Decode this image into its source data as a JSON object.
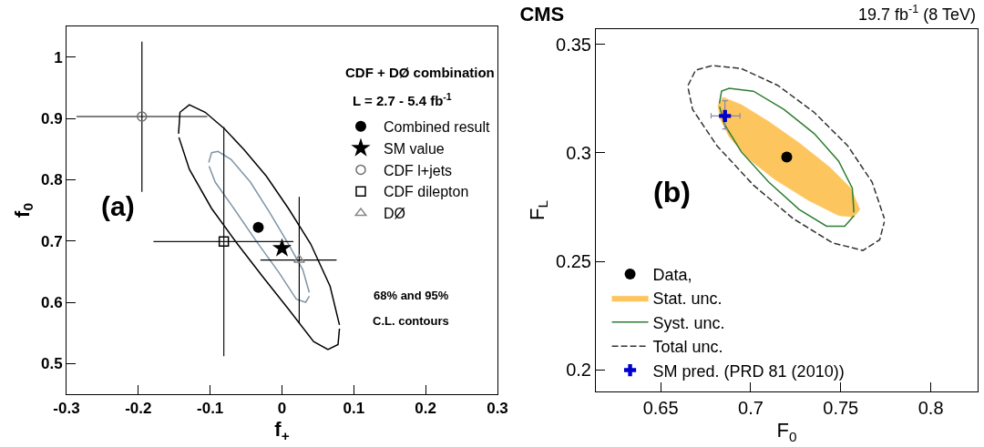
{
  "chart_data": [
    {
      "type": "scatter",
      "xlabel": "f$_{+}$",
      "ylabel": "f$_{0}$",
      "xlim": [
        -0.3,
        0.3
      ],
      "xticks": [
        -0.3,
        -0.2,
        -0.1,
        0,
        0.1,
        0.2,
        0.3
      ],
      "ylim": [
        0.45,
        1.05
      ],
      "yticks": [
        0.5,
        0.6,
        0.7,
        0.8,
        0.9,
        1
      ],
      "grid": false,
      "legend": "top right",
      "annotations": [
        "CDF + DØ combination",
        "L = 2.7 - 5.4 fb$^{-1}$",
        "68% and 95%",
        "C.L. contours",
        "(a)"
      ],
      "series": [
        {
          "type": "line",
          "color": "#000000",
          "line_style": "solid",
          "marker": "none",
          "x": [
            -0.144,
            -0.142,
            -0.129,
            -0.107,
            -0.08,
            -0.053,
            -0.022,
            0.009,
            0.04,
            0.067,
            0.08
          ],
          "values": [
            0.875,
            0.91,
            0.922,
            0.91,
            0.883,
            0.849,
            0.806,
            0.753,
            0.695,
            0.626,
            0.563
          ]
        },
        {
          "type": "line",
          "color": "#000000",
          "line_style": "solid",
          "marker": "none",
          "x": [
            -0.1435,
            -0.129,
            -0.098,
            -0.062,
            -0.027,
            0.009,
            0.044,
            0.064,
            0.078,
            0.08
          ],
          "values": [
            0.869,
            0.817,
            0.753,
            0.695,
            0.642,
            0.589,
            0.536,
            0.523,
            0.531,
            0.557
          ]
        },
        {
          "type": "line",
          "color": "#7f95a8",
          "line_style": "solid",
          "marker": "none",
          "x": [
            -0.102,
            -0.098,
            -0.089,
            -0.071,
            -0.044,
            -0.018,
            0.009,
            0.029,
            0.038
          ],
          "values": [
            0.828,
            0.844,
            0.846,
            0.833,
            0.796,
            0.748,
            0.695,
            0.653,
            0.616
          ]
        },
        {
          "type": "line",
          "color": "#7f95a8",
          "line_style": "solid",
          "marker": "none",
          "x": [
            -0.1015,
            -0.093,
            -0.067,
            -0.036,
            -0.004,
            0.02,
            0.033,
            0.038
          ],
          "values": [
            0.822,
            0.796,
            0.753,
            0.7,
            0.648,
            0.605,
            0.6,
            0.61
          ]
        },
        {
          "name": "Combined result",
          "color": "#000000",
          "marker": "circle",
          "x": [
            -0.033
          ],
          "values": [
            0.722
          ]
        },
        {
          "name": "SM value",
          "color": "#000000",
          "marker": "star",
          "x": [
            0
          ],
          "values": [
            0.688
          ]
        },
        {
          "name": "CDF l+jets",
          "color": "#6e6e6e",
          "marker": "circle",
          "x": [
            -0.195
          ],
          "values": [
            0.903
          ],
          "errors": [
            [
              0.78,
              1.025
            ]
          ],
          "xerrors": [
            [
              -0.286,
              -0.104
            ]
          ]
        },
        {
          "name": "CDF dilepton",
          "color": "#000000",
          "marker": "square",
          "x": [
            -0.081
          ],
          "values": [
            0.699
          ],
          "errors": [
            [
              0.512,
              0.886
            ]
          ],
          "xerrors": [
            [
              -0.179,
              0.016
            ]
          ]
        },
        {
          "name": "DØ",
          "color": "#888888",
          "marker": "triangle",
          "x": [
            0.024
          ],
          "values": [
            0.669
          ],
          "errors": [
            [
              0.566,
              0.772
            ]
          ],
          "xerrors": [
            [
              -0.03,
              0.076
            ]
          ]
        }
      ]
    },
    {
      "type": "scatter",
      "title": "CMS",
      "subtitle": "19.7 fb$^{-1}$ (8 TeV)",
      "xlabel": "F$_{0}$",
      "ylabel": "F$_{L}$",
      "xlim": [
        0.614,
        0.826
      ],
      "xticks": [
        0.65,
        0.7,
        0.75,
        0.8
      ],
      "ylim": [
        0.19,
        0.357
      ],
      "yticks": [
        0.2,
        0.25,
        0.3,
        0.35
      ],
      "grid": false,
      "legend": "bottom left",
      "annotations": [
        "(b)"
      ],
      "series": [
        {
          "name": "Data,",
          "color": "#000000",
          "marker": "circle",
          "x": [
            0.72
          ],
          "values": [
            0.298
          ]
        },
        {
          "type": "area",
          "name": "Stat. unc.",
          "color": "#fdc55e",
          "x": [
            0.6846,
            0.6948,
            0.71,
            0.7269,
            0.7438,
            0.7556,
            0.7606,
            0.7573,
            0.7488,
            0.7319,
            0.7133,
            0.6981,
            0.688,
            0.6829,
            0.6818,
            0.6846
          ],
          "values": [
            0.3256,
            0.3222,
            0.3144,
            0.3046,
            0.2934,
            0.2837,
            0.2739,
            0.2704,
            0.2711,
            0.2781,
            0.2878,
            0.2976,
            0.3074,
            0.3158,
            0.3221,
            0.3256
          ]
        },
        {
          "type": "line",
          "name": "Syst. unc.",
          "color": "#2e7d32",
          "line_style": "solid",
          "marker": "none",
          "x": [
            0.6826,
            0.6838,
            0.688,
            0.7015,
            0.7184,
            0.7353,
            0.7488,
            0.7564,
            0.7573
          ],
          "values": [
            0.3228,
            0.3284,
            0.3297,
            0.3284,
            0.32,
            0.3088,
            0.2962,
            0.2837,
            0.2725
          ]
        },
        {
          "type": "line",
          "name": "Total unc.",
          "color": "#333333",
          "line_style": "dashed",
          "marker": "none",
          "x": [
            0.6652,
            0.6694,
            0.6787,
            0.6948,
            0.715,
            0.7353,
            0.7539,
            0.7674,
            0.7742
          ],
          "values": [
            0.3311,
            0.3381,
            0.3402,
            0.3388,
            0.3311,
            0.3186,
            0.3032,
            0.2865,
            0.2697
          ]
        },
        {
          "type": "line",
          "color": "#2e7d32",
          "line_style": "solid",
          "marker": "none",
          "x": [
            0.6827,
            0.6855,
            0.6948,
            0.71,
            0.7269,
            0.7421,
            0.7522,
            0.7573
          ],
          "values": [
            0.3213,
            0.313,
            0.3004,
            0.2865,
            0.2739,
            0.2662,
            0.2662,
            0.271
          ]
        },
        {
          "type": "line",
          "color": "#333333",
          "line_style": "dashed",
          "marker": "none",
          "x": [
            0.6653,
            0.6677,
            0.6813,
            0.7015,
            0.7235,
            0.7454,
            0.7623,
            0.7716,
            0.7742
          ],
          "values": [
            0.3296,
            0.32,
            0.3032,
            0.2851,
            0.2697,
            0.2585,
            0.255,
            0.2599,
            0.2682
          ]
        },
        {
          "name": "SM pred. (PRD 81 (2010))",
          "color": "#0000cc",
          "marker": "cross",
          "x": [
            0.6857
          ],
          "values": [
            0.317
          ],
          "errors": [
            [
              0.311,
              0.324
            ]
          ],
          "xerrors": [
            [
              0.678,
              0.694
            ]
          ]
        }
      ]
    }
  ]
}
